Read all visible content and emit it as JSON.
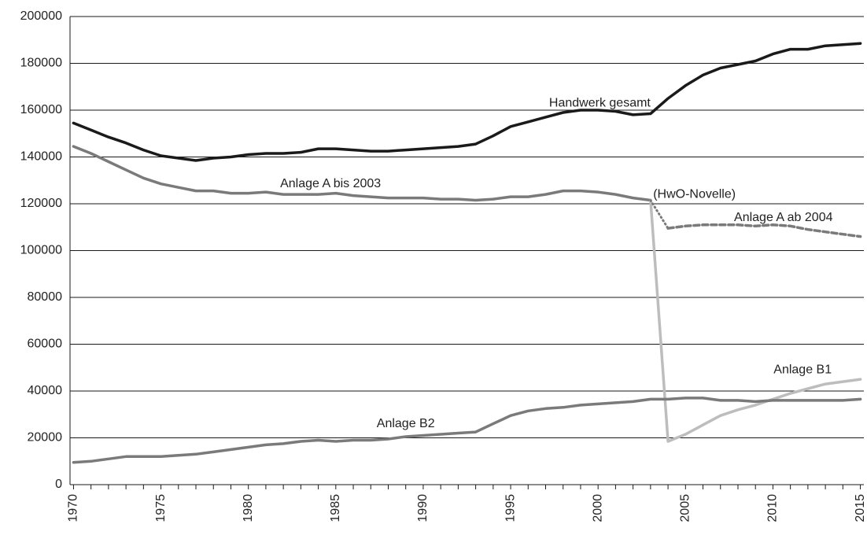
{
  "chart_data": {
    "type": "line",
    "title": "",
    "xlabel": "",
    "ylabel": "",
    "xlim": [
      1970,
      2015
    ],
    "ylim": [
      0,
      200000
    ],
    "grid": true,
    "legend": "none",
    "y_ticks": [
      "0",
      "20000",
      "40000",
      "60000",
      "80000",
      "100000",
      "120000",
      "140000",
      "160000",
      "180000",
      "200000"
    ],
    "x_ticks": [
      "1970",
      "1975",
      "1980",
      "1985",
      "1990",
      "1995",
      "2000",
      "2005",
      "2010",
      "2015"
    ],
    "series": [
      {
        "name": "Handwerk gesamt",
        "color": "#1a1a1a",
        "dash": "solid",
        "x": [
          1970,
          1971,
          1972,
          1973,
          1974,
          1975,
          1976,
          1977,
          1978,
          1979,
          1980,
          1981,
          1982,
          1983,
          1984,
          1985,
          1986,
          1987,
          1988,
          1989,
          1990,
          1991,
          1992,
          1993,
          1994,
          1995,
          1996,
          1997,
          1998,
          1999,
          2000,
          2001,
          2002,
          2003,
          2004,
          2005,
          2006,
          2007,
          2008,
          2009,
          2010,
          2011,
          2012,
          2013,
          2014,
          2015
        ],
        "values": [
          154500,
          151500,
          148500,
          146000,
          143000,
          140500,
          139500,
          138500,
          139500,
          140000,
          141000,
          141500,
          141500,
          142000,
          143500,
          143500,
          143000,
          142500,
          142500,
          143000,
          143500,
          144000,
          144500,
          145500,
          149000,
          153000,
          155000,
          157000,
          159000,
          160000,
          160000,
          159500,
          158000,
          158500,
          165000,
          170500,
          175000,
          178000,
          179500,
          181000,
          184000,
          186000,
          186000,
          187500,
          188000,
          188500
        ]
      },
      {
        "name": "Anlage A bis 2003",
        "color": "#7a7a7a",
        "dash": "solid",
        "x": [
          1970,
          1971,
          1972,
          1973,
          1974,
          1975,
          1976,
          1977,
          1978,
          1979,
          1980,
          1981,
          1982,
          1983,
          1984,
          1985,
          1986,
          1987,
          1988,
          1989,
          1990,
          1991,
          1992,
          1993,
          1994,
          1995,
          1996,
          1997,
          1998,
          1999,
          2000,
          2001,
          2002,
          2003
        ],
        "values": [
          144500,
          141500,
          138000,
          134500,
          131000,
          128500,
          127000,
          125500,
          125500,
          124500,
          124500,
          125000,
          124000,
          124000,
          124000,
          124500,
          123500,
          123000,
          122500,
          122500,
          122500,
          122000,
          122000,
          121500,
          122000,
          123000,
          123000,
          124000,
          125500,
          125500,
          125000,
          124000,
          122500,
          121500
        ]
      },
      {
        "name": "Anlage A ab 2004",
        "color": "#7a7a7a",
        "dash": "dashed",
        "x": [
          2004,
          2005,
          2006,
          2007,
          2008,
          2009,
          2010,
          2011,
          2012,
          2013,
          2014,
          2015
        ],
        "values": [
          109500,
          110500,
          111000,
          111000,
          111000,
          110500,
          111000,
          110500,
          109000,
          108000,
          107000,
          106000
        ]
      },
      {
        "name": "Anlage B1",
        "color": "#bdbdbd",
        "dash": "solid",
        "x": [
          2003,
          2004,
          2005,
          2006,
          2007,
          2008,
          2009,
          2010,
          2011,
          2012,
          2013,
          2014,
          2015
        ],
        "values": [
          121500,
          18500,
          21500,
          25500,
          29500,
          32000,
          34000,
          36500,
          39000,
          41000,
          43000,
          44000,
          45000
        ]
      },
      {
        "name": "Anlage B2",
        "color": "#7a7a7a",
        "dash": "solid",
        "x": [
          1970,
          1971,
          1972,
          1973,
          1974,
          1975,
          1976,
          1977,
          1978,
          1979,
          1980,
          1981,
          1982,
          1983,
          1984,
          1985,
          1986,
          1987,
          1988,
          1989,
          1990,
          1991,
          1992,
          1993,
          1994,
          1995,
          1996,
          1997,
          1998,
          1999,
          2000,
          2001,
          2002,
          2003,
          2004,
          2005,
          2006,
          2007,
          2008,
          2009,
          2010,
          2011,
          2012,
          2013,
          2014,
          2015
        ],
        "values": [
          9500,
          10000,
          11000,
          12000,
          12000,
          12000,
          12500,
          13000,
          14000,
          15000,
          16000,
          17000,
          17500,
          18500,
          19000,
          18500,
          19000,
          19000,
          19500,
          20500,
          21000,
          21500,
          22000,
          22500,
          26000,
          29500,
          31500,
          32500,
          33000,
          34000,
          34500,
          35000,
          35500,
          36500,
          36500,
          37000,
          37000,
          36000,
          36000,
          35500,
          36000,
          36000,
          36000,
          36000,
          36000,
          36500
        ]
      }
    ],
    "connectors": [
      {
        "from": [
          2003,
          121500
        ],
        "to": [
          2004,
          109500
        ],
        "color": "#7a7a7a",
        "dash": "dotted"
      }
    ],
    "annotations": [
      {
        "text": "Handwerk gesamt",
        "x": 2000.1,
        "y": 163000,
        "anchor": "middle"
      },
      {
        "text": "Anlage A bis 2003",
        "x": 1984.7,
        "y": 128500,
        "anchor": "middle"
      },
      {
        "text": "(HwO-Novelle)",
        "x": 2003.15,
        "y": 124000,
        "anchor": "start"
      },
      {
        "text": "Anlage A ab 2004",
        "x": 2010.6,
        "y": 114000,
        "anchor": "middle"
      },
      {
        "text": "Anlage B1",
        "x": 2011.7,
        "y": 49000,
        "anchor": "middle"
      },
      {
        "text": "Anlage B2",
        "x": 1989.0,
        "y": 26000,
        "anchor": "middle"
      }
    ]
  }
}
